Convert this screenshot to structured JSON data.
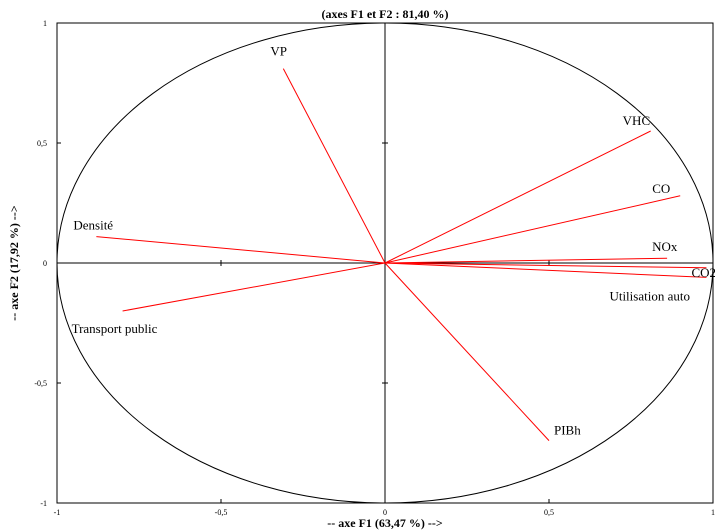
{
  "chart_data": {
    "type": "scatter",
    "subtype": "pca-correlation-circle",
    "title": "(axes F1 et F2 : 81,40 %)",
    "xlabel": "-- axe F1 (63,47 %) -->",
    "ylabel": "-- axe F2 (17,92 %) -->",
    "xlim": [
      -1,
      1
    ],
    "ylim": [
      -1,
      1
    ],
    "x_ticks": [
      -1,
      -0.5,
      0,
      0.5,
      1
    ],
    "y_ticks": [
      -1,
      -0.5,
      0,
      0.5,
      1
    ],
    "x_tick_labels": [
      "-1",
      "-0,5",
      "0",
      "0,5",
      "1"
    ],
    "y_tick_labels": [
      "-1",
      "-0,5",
      "0",
      "0,5",
      "1"
    ],
    "grid": false,
    "unit_circle": true,
    "vector_color": "#ff0000",
    "vectors": [
      {
        "name": "VP",
        "x": -0.31,
        "y": 0.81
      },
      {
        "name": "VHC",
        "x": 0.81,
        "y": 0.55
      },
      {
        "name": "CO",
        "x": 0.9,
        "y": 0.28
      },
      {
        "name": "NOx",
        "x": 0.86,
        "y": 0.02
      },
      {
        "name": "CO2",
        "x": 0.98,
        "y": -0.02
      },
      {
        "name": "Utilisation auto",
        "x": 0.98,
        "y": -0.06
      },
      {
        "name": "Densité",
        "x": -0.88,
        "y": 0.11
      },
      {
        "name": "Transport public",
        "x": -0.8,
        "y": -0.2
      },
      {
        "name": "PIBh",
        "x": 0.5,
        "y": -0.74
      }
    ]
  }
}
